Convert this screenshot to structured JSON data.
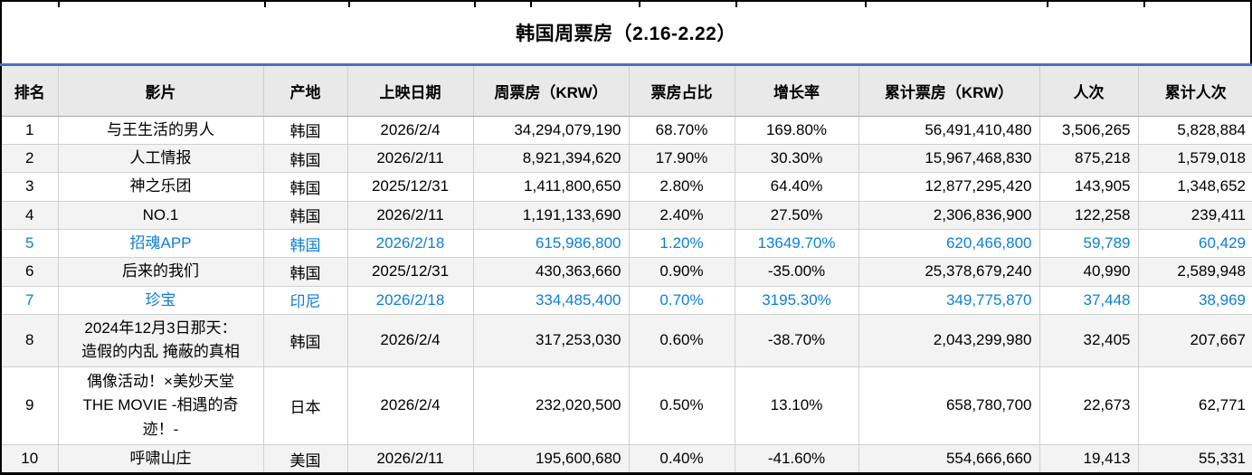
{
  "title": "韩国周票房（2.16-2.22）",
  "colors": {
    "accent_blue": "#4472C4",
    "highlight_text": "#0B7FD6",
    "band_gray": "#F3F3F3",
    "header_bg": "#E9E9E9",
    "grid_line": "#D0D0D0",
    "border_black": "#000000"
  },
  "table": {
    "columns": [
      {
        "key": "rank",
        "label": "排名"
      },
      {
        "key": "film",
        "label": "影片"
      },
      {
        "key": "origin",
        "label": "产地"
      },
      {
        "key": "release_date",
        "label": "上映日期"
      },
      {
        "key": "week_gross",
        "label": "周票房（KRW）"
      },
      {
        "key": "share",
        "label": "票房占比"
      },
      {
        "key": "growth",
        "label": "增长率"
      },
      {
        "key": "cume_gross",
        "label": "累计票房（KRW）"
      },
      {
        "key": "admissions",
        "label": "人次"
      },
      {
        "key": "cume_admissions",
        "label": "累计人次"
      }
    ],
    "rows": [
      {
        "rank": "1",
        "film": "与王生活的男人",
        "origin": "韩国",
        "release_date": "2026/2/4",
        "week_gross": "34,294,079,190",
        "share": "68.70%",
        "growth": "169.80%",
        "cume_gross": "56,491,410,480",
        "admissions": "3,506,265",
        "cume_admissions": "5,828,884",
        "highlight": false
      },
      {
        "rank": "2",
        "film": "人工情报",
        "origin": "韩国",
        "release_date": "2026/2/11",
        "week_gross": "8,921,394,620",
        "share": "17.90%",
        "growth": "30.30%",
        "cume_gross": "15,967,468,830",
        "admissions": "875,218",
        "cume_admissions": "1,579,018",
        "highlight": false
      },
      {
        "rank": "3",
        "film": "神之乐团",
        "origin": "韩国",
        "release_date": "2025/12/31",
        "week_gross": "1,411,800,650",
        "share": "2.80%",
        "growth": "64.40%",
        "cume_gross": "12,877,295,420",
        "admissions": "143,905",
        "cume_admissions": "1,348,652",
        "highlight": false
      },
      {
        "rank": "4",
        "film": "NO.1",
        "origin": "韩国",
        "release_date": "2026/2/11",
        "week_gross": "1,191,133,690",
        "share": "2.40%",
        "growth": "27.50%",
        "cume_gross": "2,306,836,900",
        "admissions": "122,258",
        "cume_admissions": "239,411",
        "highlight": false
      },
      {
        "rank": "5",
        "film": "招魂APP",
        "origin": "韩国",
        "release_date": "2026/2/18",
        "week_gross": "615,986,800",
        "share": "1.20%",
        "growth": "13649.70%",
        "cume_gross": "620,466,800",
        "admissions": "59,789",
        "cume_admissions": "60,429",
        "highlight": true
      },
      {
        "rank": "6",
        "film": "后来的我们",
        "origin": "韩国",
        "release_date": "2025/12/31",
        "week_gross": "430,363,660",
        "share": "0.90%",
        "growth": "-35.00%",
        "cume_gross": "25,378,679,240",
        "admissions": "40,990",
        "cume_admissions": "2,589,948",
        "highlight": false
      },
      {
        "rank": "7",
        "film": "珍宝",
        "origin": "印尼",
        "release_date": "2026/2/18",
        "week_gross": "334,485,400",
        "share": "0.70%",
        "growth": "3195.30%",
        "cume_gross": "349,775,870",
        "admissions": "37,448",
        "cume_admissions": "38,969",
        "highlight": true
      },
      {
        "rank": "8",
        "film": "2024年12月3日那天：\n造假的内乱 掩蔽的真相",
        "origin": "韩国",
        "release_date": "2026/2/4",
        "week_gross": "317,253,030",
        "share": "0.60%",
        "growth": "-38.70%",
        "cume_gross": "2,043,299,980",
        "admissions": "32,405",
        "cume_admissions": "207,667",
        "highlight": false
      },
      {
        "rank": "9",
        "film": "偶像活动！×美妙天堂\nTHE MOVIE -相遇的奇\n迹！-",
        "origin": "日本",
        "release_date": "2026/2/4",
        "week_gross": "232,020,500",
        "share": "0.50%",
        "growth": "13.10%",
        "cume_gross": "658,780,700",
        "admissions": "22,673",
        "cume_admissions": "62,771",
        "highlight": false
      },
      {
        "rank": "10",
        "film": "呼啸山庄",
        "origin": "美国",
        "release_date": "2026/2/11",
        "week_gross": "195,600,680",
        "share": "0.40%",
        "growth": "-41.60%",
        "cume_gross": "554,666,660",
        "admissions": "19,413",
        "cume_admissions": "55,331",
        "highlight": false
      }
    ]
  }
}
